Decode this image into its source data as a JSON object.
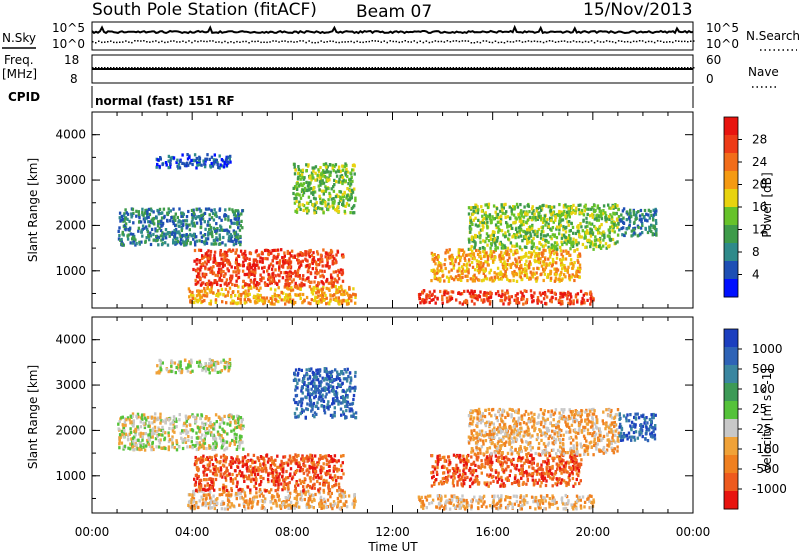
{
  "header": {
    "station": "South Pole Station (fitACF)",
    "beam": "Beam 07",
    "date": "15/Nov/2013"
  },
  "status_panels": {
    "nsky_label": "N.Sky",
    "nsearch_label": "N.Search",
    "noise_ticks_left": [
      "10^5",
      "10^0"
    ],
    "noise_ticks_right": [
      "10^5",
      "10^0"
    ],
    "freq_label": "Freq.",
    "freq_unit": "[MHz]",
    "freq_ticks": [
      "18",
      "8"
    ],
    "nave_label": "Nave",
    "nave_ticks": [
      "60",
      "0"
    ],
    "cpid_label": "CPID",
    "cpid_value": "normal (fast) 151 RF"
  },
  "time_axis": {
    "label": "Time UT",
    "ticks": [
      "00:00",
      "04:00",
      "08:00",
      "12:00",
      "16:00",
      "20:00",
      "00:00"
    ]
  },
  "chart_data": [
    {
      "type": "heatmap",
      "title": "Power",
      "ylabel": "Slant Range [km]",
      "xlabel": "Time UT",
      "x_range_hours": [
        0,
        24
      ],
      "ylim": [
        180,
        4500
      ],
      "yticks": [
        "1000",
        "2000",
        "3000",
        "4000"
      ],
      "colorbar": {
        "label": "Power [dB]",
        "ticks": [
          "4",
          "8",
          "12",
          "16",
          "20",
          "24",
          "28"
        ],
        "colors": [
          "#0010ff",
          "#1e4fb4",
          "#2f8a8a",
          "#3e9b4a",
          "#66c22a",
          "#e8d30f",
          "#f59a12",
          "#f26d1a",
          "#ee3b17",
          "#e8140f"
        ]
      },
      "echo_regions": [
        {
          "t_start": 3.8,
          "t_end": 10.5,
          "range_start": 300,
          "range_end": 700,
          "level": "medium-high"
        },
        {
          "t_start": 4.0,
          "t_end": 10.0,
          "range_start": 700,
          "range_end": 1500,
          "level": "high"
        },
        {
          "t_start": 1.0,
          "t_end": 6.0,
          "range_start": 1600,
          "range_end": 2400,
          "level": "low-medium"
        },
        {
          "t_start": 8.0,
          "t_end": 10.5,
          "range_start": 2300,
          "range_end": 3400,
          "level": "medium"
        },
        {
          "t_start": 2.5,
          "t_end": 5.5,
          "range_start": 3300,
          "range_end": 3600,
          "level": "low"
        },
        {
          "t_start": 13.0,
          "t_end": 20.0,
          "range_start": 300,
          "range_end": 600,
          "level": "high"
        },
        {
          "t_start": 13.5,
          "t_end": 19.5,
          "range_start": 800,
          "range_end": 1500,
          "level": "medium-high"
        },
        {
          "t_start": 15.0,
          "t_end": 21.0,
          "range_start": 1500,
          "range_end": 2500,
          "level": "medium"
        },
        {
          "t_start": 21.0,
          "t_end": 22.5,
          "range_start": 1800,
          "range_end": 2400,
          "level": "low-medium"
        }
      ]
    },
    {
      "type": "heatmap",
      "title": "Velocity",
      "ylabel": "Slant Range [km]",
      "xlabel": "Time UT",
      "x_range_hours": [
        0,
        24
      ],
      "ylim": [
        180,
        4500
      ],
      "yticks": [
        "1000",
        "2000",
        "3000",
        "4000"
      ],
      "colorbar": {
        "label": "Velocity [m s^-1]",
        "ticks": [
          "1000",
          "500",
          "100",
          "25",
          "-25",
          "-100",
          "-500",
          "-1000"
        ],
        "colors": [
          "#1c3fbf",
          "#2e63b6",
          "#3a86a0",
          "#3d9a57",
          "#55c23a",
          "#c8c8c8",
          "#f0a238",
          "#f08020",
          "#ee5a1e",
          "#e8140f"
        ]
      },
      "echo_regions": [
        {
          "t_start": 3.8,
          "t_end": 10.5,
          "range_start": 300,
          "range_end": 700,
          "level": "-100"
        },
        {
          "t_start": 4.0,
          "t_end": 10.0,
          "range_start": 700,
          "range_end": 1500,
          "level": "-500"
        },
        {
          "t_start": 1.0,
          "t_end": 6.0,
          "range_start": 1600,
          "range_end": 2400,
          "level": "-25"
        },
        {
          "t_start": 8.0,
          "t_end": 10.5,
          "range_start": 2300,
          "range_end": 3400,
          "level": "500"
        },
        {
          "t_start": 2.5,
          "t_end": 5.5,
          "range_start": 3300,
          "range_end": 3600,
          "level": "-25"
        },
        {
          "t_start": 13.0,
          "t_end": 20.0,
          "range_start": 300,
          "range_end": 600,
          "level": "-100"
        },
        {
          "t_start": 13.5,
          "t_end": 19.5,
          "range_start": 800,
          "range_end": 1500,
          "level": "-500"
        },
        {
          "t_start": 15.0,
          "t_end": 21.0,
          "range_start": 1500,
          "range_end": 2500,
          "level": "-100"
        },
        {
          "t_start": 21.0,
          "t_end": 22.5,
          "range_start": 1800,
          "range_end": 2400,
          "level": "500"
        }
      ]
    }
  ]
}
